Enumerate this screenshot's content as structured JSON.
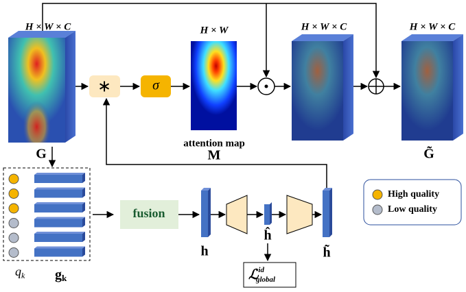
{
  "inputs": {
    "dims": "H × W × C",
    "label": "G"
  },
  "ops": {
    "conv": "∗",
    "sigmoid": "σ"
  },
  "attention": {
    "dims": "H × W",
    "caption": "attention map",
    "label": "M"
  },
  "weighted": {
    "dims": "H × W × C"
  },
  "output": {
    "dims": "H × W × C",
    "label": "G̃"
  },
  "quality": {
    "q": {
      "base": "q",
      "sub": "k"
    },
    "g": {
      "base": "g",
      "sub": "k"
    }
  },
  "fusion": "fusion",
  "features": {
    "h": "h",
    "h_hat": "ĥ",
    "h_tilde": "h̃"
  },
  "loss": {
    "symbol": "ℒ",
    "sup": "id",
    "sub": "global"
  },
  "legend": {
    "high": "High quality",
    "low": "Low quality"
  }
}
